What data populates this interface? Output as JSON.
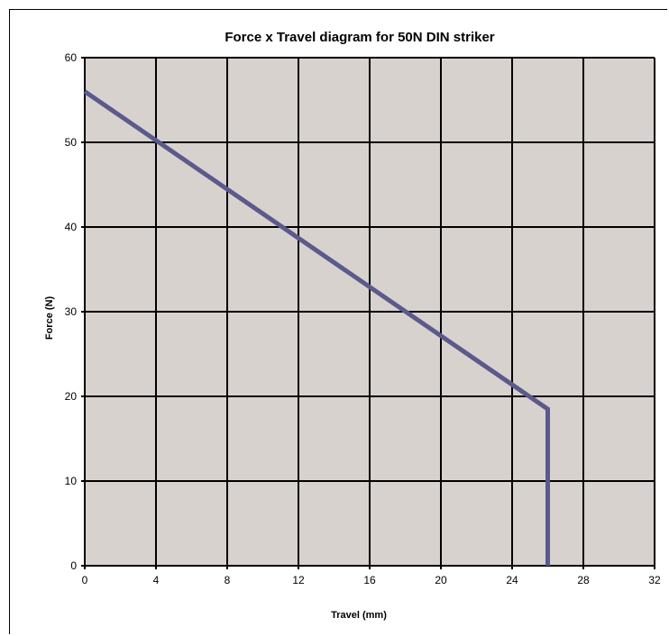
{
  "chart_data": {
    "type": "line",
    "title": "Force x Travel diagram for 50N DIN striker",
    "xlabel": "Travel (mm)",
    "ylabel": "Force (N)",
    "xlim": [
      0,
      32
    ],
    "ylim": [
      0,
      60
    ],
    "x_ticks": [
      0,
      4,
      8,
      12,
      16,
      20,
      24,
      28,
      32
    ],
    "y_ticks": [
      0,
      10,
      20,
      30,
      40,
      50,
      60
    ],
    "grid": true,
    "legend": "none",
    "series": [
      {
        "x": [
          0,
          26,
          26
        ],
        "y": [
          56,
          18.5,
          0
        ]
      }
    ]
  },
  "colors": {
    "plot_background": "#d8d2ce",
    "line": "#5a5a8c",
    "grid": "#000000"
  }
}
